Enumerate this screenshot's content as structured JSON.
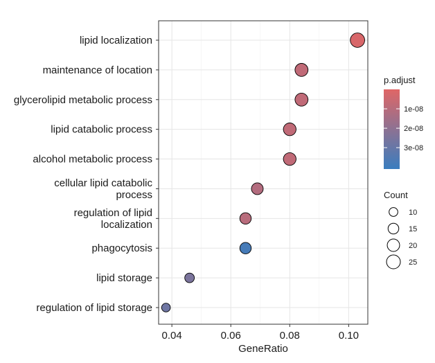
{
  "chart_data": {
    "type": "scatter",
    "title": "",
    "xlabel": "GeneRatio",
    "ylabel": "",
    "xlim": [
      0.0355,
      0.1065
    ],
    "xticks": [
      0.04,
      0.06,
      0.08,
      0.1
    ],
    "xtick_labels": [
      "0.04",
      "0.06",
      "0.08",
      "0.10"
    ],
    "grid": true,
    "legend_placement": "right",
    "categories": [
      "lipid localization",
      "maintenance of location",
      "glycerolipid metabolic process",
      "lipid catabolic process",
      "alcohol metabolic process",
      "cellular lipid catabolic process",
      "regulation of lipid localization",
      "phagocytosis",
      "lipid storage",
      "regulation of lipid storage"
    ],
    "category_labels": [
      [
        "lipid localization"
      ],
      [
        "maintenance of location"
      ],
      [
        "glycerolipid metabolic process"
      ],
      [
        "lipid catabolic process"
      ],
      [
        "alcohol metabolic process"
      ],
      [
        "cellular lipid catabolic",
        "process"
      ],
      [
        "regulation of lipid",
        "localization"
      ],
      [
        "phagocytosis"
      ],
      [
        "lipid storage"
      ],
      [
        "regulation of lipid storage"
      ]
    ],
    "points": [
      {
        "term": "lipid localization",
        "gene_ratio": 0.103,
        "count": 27,
        "p_adjust": 2e-09
      },
      {
        "term": "maintenance of location",
        "gene_ratio": 0.084,
        "count": 22,
        "p_adjust": 8e-09
      },
      {
        "term": "glycerolipid metabolic process",
        "gene_ratio": 0.084,
        "count": 22,
        "p_adjust": 8e-09
      },
      {
        "term": "lipid catabolic process",
        "gene_ratio": 0.08,
        "count": 21,
        "p_adjust": 8e-09
      },
      {
        "term": "alcohol metabolic process",
        "gene_ratio": 0.08,
        "count": 21,
        "p_adjust": 8e-09
      },
      {
        "term": "cellular lipid catabolic process",
        "gene_ratio": 0.069,
        "count": 18,
        "p_adjust": 1.1e-08
      },
      {
        "term": "regulation of lipid localization",
        "gene_ratio": 0.065,
        "count": 17,
        "p_adjust": 1e-08
      },
      {
        "term": "phagocytosis",
        "gene_ratio": 0.065,
        "count": 17,
        "p_adjust": 3.8e-08
      },
      {
        "term": "lipid storage",
        "gene_ratio": 0.046,
        "count": 12,
        "p_adjust": 2.5e-08
      },
      {
        "term": "regulation of lipid storage",
        "gene_ratio": 0.038,
        "count": 10,
        "p_adjust": 2.8e-08
      }
    ],
    "color_legend": {
      "title": "p.adjust",
      "low_color": "#e06666",
      "high_color": "#3a7dbf",
      "range": [
        0.0,
        4.1e-08
      ],
      "ticks": [
        1e-08,
        2e-08,
        3e-08
      ],
      "tick_labels": [
        "1e-08",
        "2e-08",
        "3e-08"
      ]
    },
    "size_legend": {
      "title": "Count",
      "values": [
        10,
        15,
        20,
        25
      ],
      "labels": [
        "10",
        "15",
        "20",
        "25"
      ]
    }
  }
}
